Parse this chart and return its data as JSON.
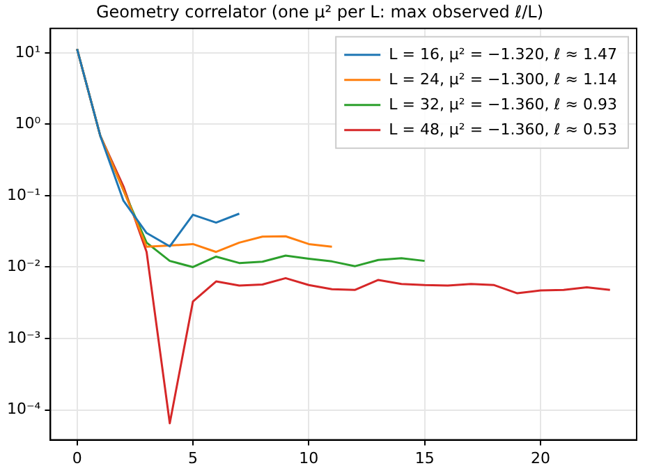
{
  "chart_data": {
    "type": "line",
    "title": "Geometry correlator (one μ² per L: max observed ℓ/L)",
    "xlim": [
      -1.15,
      24.15
    ],
    "xticks": [
      0,
      5,
      10,
      15,
      20
    ],
    "ylim": [
      3.8e-05,
      22
    ],
    "yticks": [
      {
        "value": 0.0001,
        "label": "10⁻⁴"
      },
      {
        "value": 0.001,
        "label": "10⁻³"
      },
      {
        "value": 0.01,
        "label": "10⁻²"
      },
      {
        "value": 0.1,
        "label": "10⁻¹"
      },
      {
        "value": 1,
        "label": "10⁰"
      },
      {
        "value": 10,
        "label": "10¹"
      }
    ],
    "log": "y",
    "grid": true,
    "legend": "top right",
    "marker": "none",
    "line_style": "solid",
    "series": [
      {
        "name": "L = 16, μ² = −1.320, ℓ ≈ 1.47",
        "color": "#1f77b4",
        "x": [
          0,
          1,
          2,
          3,
          4,
          5,
          6,
          7
        ],
        "values": [
          11.3,
          0.69,
          0.085,
          0.03,
          0.0195,
          0.054,
          0.042,
          0.056
        ]
      },
      {
        "name": "L = 24, μ² = −1.300, ℓ ≈ 1.14",
        "color": "#ff7f0e",
        "x": [
          0,
          1,
          2,
          3,
          4,
          5,
          6,
          7,
          8,
          9,
          10,
          11
        ],
        "values": [
          11.3,
          0.69,
          0.12,
          0.0193,
          0.02,
          0.021,
          0.0163,
          0.022,
          0.0267,
          0.027,
          0.021,
          0.0193
        ]
      },
      {
        "name": "L = 32, μ² = −1.360, ℓ ≈ 0.93",
        "color": "#2ca02c",
        "x": [
          0,
          1,
          2,
          3,
          4,
          5,
          6,
          7,
          8,
          9,
          10,
          11,
          12,
          13,
          14,
          15
        ],
        "values": [
          11.3,
          0.69,
          0.12,
          0.022,
          0.0122,
          0.01,
          0.014,
          0.0114,
          0.0119,
          0.0145,
          0.0131,
          0.012,
          0.0103,
          0.0126,
          0.0133,
          0.0122
        ]
      },
      {
        "name": "L = 48, μ² = −1.360, ℓ ≈ 0.53",
        "color": "#d62728",
        "x": [
          0,
          1,
          2,
          3,
          4,
          5,
          6,
          7,
          8,
          9,
          10,
          11,
          12,
          13,
          14,
          15,
          16,
          17,
          18,
          19,
          20,
          21,
          22,
          23
        ],
        "values": [
          11.3,
          0.69,
          0.135,
          0.0163,
          6.5e-05,
          0.0033,
          0.0063,
          0.0055,
          0.0057,
          0.007,
          0.0056,
          0.0049,
          0.0048,
          0.0066,
          0.0058,
          0.0056,
          0.0055,
          0.0058,
          0.0056,
          0.0043,
          0.0047,
          0.0048,
          0.0052,
          0.0048
        ]
      }
    ]
  }
}
